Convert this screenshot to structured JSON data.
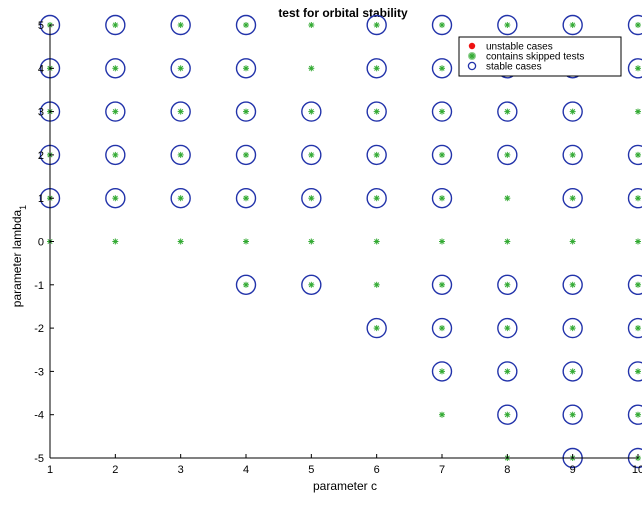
{
  "chart_data": {
    "type": "scatter",
    "title": "test for orbital stability",
    "xlabel": "parameter c",
    "ylabel": "parameter lambda",
    "ylabel_subscript": "1",
    "xlim": [
      1,
      10
    ],
    "ylim": [
      -5,
      5
    ],
    "x_ticks": [
      1,
      2,
      3,
      4,
      5,
      6,
      7,
      8,
      9,
      10
    ],
    "y_ticks": [
      -5,
      -4,
      -3,
      -2,
      -1,
      0,
      1,
      2,
      3,
      4,
      5
    ],
    "x_tick_labels": [
      "1",
      "2",
      "3",
      "4",
      "5",
      "6",
      "7",
      "8",
      "9",
      "10"
    ],
    "y_tick_labels": [
      "-5",
      "-4",
      "-3",
      "-2",
      "-1",
      "0",
      "1",
      "2",
      "3",
      "4",
      "5"
    ],
    "grid": false,
    "legend_position": "top-right",
    "series": [
      {
        "name": "unstable cases",
        "marker": "filled-dot",
        "color": "#ee1111",
        "points": []
      },
      {
        "name": "contains skipped tests",
        "marker": "asterisk",
        "color": "#33aa33",
        "points": [
          [
            1,
            5
          ],
          [
            2,
            5
          ],
          [
            3,
            5
          ],
          [
            4,
            5
          ],
          [
            5,
            5
          ],
          [
            6,
            5
          ],
          [
            7,
            5
          ],
          [
            8,
            5
          ],
          [
            9,
            5
          ],
          [
            10,
            5
          ],
          [
            1,
            4
          ],
          [
            2,
            4
          ],
          [
            3,
            4
          ],
          [
            4,
            4
          ],
          [
            5,
            4
          ],
          [
            6,
            4
          ],
          [
            7,
            4
          ],
          [
            8,
            4
          ],
          [
            9,
            4
          ],
          [
            10,
            4
          ],
          [
            1,
            3
          ],
          [
            2,
            3
          ],
          [
            3,
            3
          ],
          [
            4,
            3
          ],
          [
            5,
            3
          ],
          [
            6,
            3
          ],
          [
            7,
            3
          ],
          [
            8,
            3
          ],
          [
            9,
            3
          ],
          [
            10,
            3
          ],
          [
            1,
            2
          ],
          [
            2,
            2
          ],
          [
            3,
            2
          ],
          [
            4,
            2
          ],
          [
            5,
            2
          ],
          [
            6,
            2
          ],
          [
            7,
            2
          ],
          [
            8,
            2
          ],
          [
            9,
            2
          ],
          [
            10,
            2
          ],
          [
            1,
            1
          ],
          [
            2,
            1
          ],
          [
            3,
            1
          ],
          [
            4,
            1
          ],
          [
            5,
            1
          ],
          [
            6,
            1
          ],
          [
            7,
            1
          ],
          [
            8,
            1
          ],
          [
            9,
            1
          ],
          [
            10,
            1
          ],
          [
            1,
            0
          ],
          [
            2,
            0
          ],
          [
            3,
            0
          ],
          [
            4,
            0
          ],
          [
            5,
            0
          ],
          [
            6,
            0
          ],
          [
            7,
            0
          ],
          [
            8,
            0
          ],
          [
            9,
            0
          ],
          [
            10,
            0
          ],
          [
            4,
            -1
          ],
          [
            5,
            -1
          ],
          [
            6,
            -1
          ],
          [
            7,
            -1
          ],
          [
            8,
            -1
          ],
          [
            9,
            -1
          ],
          [
            10,
            -1
          ],
          [
            6,
            -2
          ],
          [
            7,
            -2
          ],
          [
            8,
            -2
          ],
          [
            9,
            -2
          ],
          [
            10,
            -2
          ],
          [
            7,
            -3
          ],
          [
            8,
            -3
          ],
          [
            9,
            -3
          ],
          [
            10,
            -3
          ],
          [
            7,
            -4
          ],
          [
            8,
            -4
          ],
          [
            9,
            -4
          ],
          [
            10,
            -4
          ],
          [
            8,
            -5
          ],
          [
            9,
            -5
          ],
          [
            10,
            -5
          ]
        ]
      },
      {
        "name": "stable cases",
        "marker": "open-circle",
        "color": "#2233aa",
        "points": [
          [
            1,
            5
          ],
          [
            2,
            5
          ],
          [
            3,
            5
          ],
          [
            4,
            5
          ],
          [
            6,
            5
          ],
          [
            7,
            5
          ],
          [
            8,
            5
          ],
          [
            9,
            5
          ],
          [
            10,
            5
          ],
          [
            1,
            4
          ],
          [
            2,
            4
          ],
          [
            3,
            4
          ],
          [
            4,
            4
          ],
          [
            6,
            4
          ],
          [
            7,
            4
          ],
          [
            8,
            4
          ],
          [
            9,
            4
          ],
          [
            10,
            4
          ],
          [
            1,
            3
          ],
          [
            2,
            3
          ],
          [
            3,
            3
          ],
          [
            4,
            3
          ],
          [
            5,
            3
          ],
          [
            6,
            3
          ],
          [
            7,
            3
          ],
          [
            8,
            3
          ],
          [
            9,
            3
          ],
          [
            1,
            2
          ],
          [
            2,
            2
          ],
          [
            3,
            2
          ],
          [
            4,
            2
          ],
          [
            5,
            2
          ],
          [
            6,
            2
          ],
          [
            7,
            2
          ],
          [
            8,
            2
          ],
          [
            9,
            2
          ],
          [
            10,
            2
          ],
          [
            1,
            1
          ],
          [
            2,
            1
          ],
          [
            3,
            1
          ],
          [
            4,
            1
          ],
          [
            5,
            1
          ],
          [
            6,
            1
          ],
          [
            7,
            1
          ],
          [
            9,
            1
          ],
          [
            10,
            1
          ],
          [
            4,
            -1
          ],
          [
            5,
            -1
          ],
          [
            7,
            -1
          ],
          [
            8,
            -1
          ],
          [
            9,
            -1
          ],
          [
            10,
            -1
          ],
          [
            6,
            -2
          ],
          [
            7,
            -2
          ],
          [
            8,
            -2
          ],
          [
            9,
            -2
          ],
          [
            10,
            -2
          ],
          [
            7,
            -3
          ],
          [
            8,
            -3
          ],
          [
            9,
            -3
          ],
          [
            10,
            -3
          ],
          [
            8,
            -4
          ],
          [
            9,
            -4
          ],
          [
            10,
            -4
          ],
          [
            9,
            -5
          ],
          [
            10,
            -5
          ]
        ]
      }
    ]
  }
}
